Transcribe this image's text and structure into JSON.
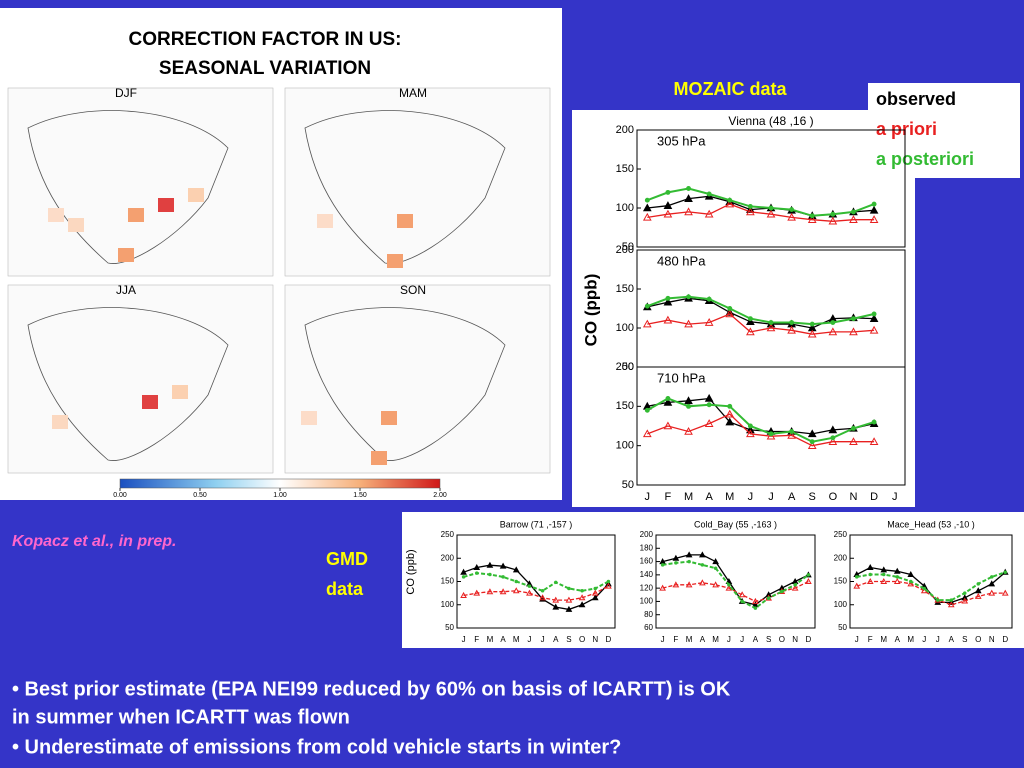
{
  "title_lines": [
    "CORRECTION FACTOR IN US:",
    "SEASONAL VARIATION"
  ],
  "maps": {
    "panels": [
      "DJF",
      "MAM",
      "JJA",
      "SON"
    ],
    "colorbar_ticks": [
      {
        "value": 0,
        "label": "0.00"
      },
      {
        "value": 0.5,
        "label": "0.50"
      },
      {
        "value": 1,
        "label": "1.00"
      },
      {
        "value": 1.5,
        "label": "1.50"
      },
      {
        "value": 2,
        "label": "2.00"
      }
    ]
  },
  "citation": "Kopacz et al., in prep.",
  "legend": [
    {
      "name": "observed",
      "color": "#000000"
    },
    {
      "name": "a priori",
      "color": "#e82020"
    },
    {
      "name": "a posteriori",
      "color": "#33bb33"
    }
  ],
  "mozaic": {
    "label": "MOZAIC data",
    "ylabel": "CO (ppb)"
  },
  "gmd": {
    "label_lines": [
      "GMD",
      "data"
    ],
    "ylabel": "CO (ppb)"
  },
  "bullets": [
    "• Best prior estimate (EPA NEI99 reduced by 60% on basis of ICARTT) is OK",
    "in summer when ICARTT was flown",
    "• Underestimate of emissions from cold vehicle starts in winter?"
  ],
  "chart_data": [
    {
      "type": "line",
      "title": "Vienna (48 ,16 )",
      "annotation": "305 hPa",
      "categories": [
        "J",
        "F",
        "M",
        "A",
        "M",
        "J",
        "J",
        "A",
        "S",
        "O",
        "N",
        "D",
        "J"
      ],
      "series": [
        {
          "values": [
            100,
            103,
            112,
            115,
            108,
            98,
            100,
            97,
            90,
            92,
            95,
            97,
            null
          ]
        },
        {
          "values": [
            88,
            92,
            95,
            92,
            105,
            95,
            92,
            88,
            85,
            83,
            85,
            85,
            null
          ]
        },
        {
          "values": [
            110,
            120,
            125,
            118,
            110,
            102,
            100,
            98,
            90,
            92,
            95,
            105,
            null
          ]
        }
      ],
      "ylim": [
        50,
        200
      ],
      "yticks": [
        50,
        100,
        150,
        200
      ]
    },
    {
      "type": "line",
      "annotation": "480 hPa",
      "categories": [
        "J",
        "F",
        "M",
        "A",
        "M",
        "J",
        "J",
        "A",
        "S",
        "O",
        "N",
        "D",
        "J"
      ],
      "series": [
        {
          "values": [
            127,
            133,
            138,
            135,
            120,
            108,
            105,
            105,
            100,
            112,
            113,
            112,
            null
          ]
        },
        {
          "values": [
            105,
            110,
            105,
            107,
            118,
            95,
            100,
            97,
            92,
            95,
            95,
            97,
            null
          ]
        },
        {
          "values": [
            128,
            138,
            140,
            137,
            125,
            112,
            107,
            107,
            105,
            107,
            112,
            118,
            null
          ]
        }
      ],
      "ylim": [
        50,
        200
      ],
      "yticks": [
        50,
        100,
        150,
        200
      ]
    },
    {
      "type": "line",
      "annotation": "710 hPa",
      "categories": [
        "J",
        "F",
        "M",
        "A",
        "M",
        "J",
        "J",
        "A",
        "S",
        "O",
        "N",
        "D",
        "J"
      ],
      "series": [
        {
          "values": [
            150,
            155,
            157,
            160,
            130,
            120,
            118,
            118,
            115,
            120,
            122,
            128,
            null
          ]
        },
        {
          "values": [
            115,
            125,
            118,
            128,
            140,
            115,
            112,
            113,
            100,
            105,
            105,
            105,
            null
          ]
        },
        {
          "values": [
            145,
            160,
            150,
            152,
            150,
            125,
            115,
            118,
            105,
            110,
            122,
            130,
            null
          ]
        }
      ],
      "ylim": [
        50,
        200
      ],
      "yticks": [
        50,
        100,
        150,
        200
      ]
    },
    {
      "type": "line",
      "title": "Barrow (71 ,-157 )",
      "categories": [
        "J",
        "F",
        "M",
        "A",
        "M",
        "J",
        "J",
        "A",
        "S",
        "O",
        "N",
        "D"
      ],
      "series": [
        {
          "values": [
            170,
            180,
            185,
            183,
            175,
            145,
            112,
            95,
            90,
            100,
            115,
            145
          ]
        },
        {
          "values": [
            120,
            125,
            128,
            128,
            130,
            125,
            115,
            110,
            110,
            115,
            125,
            140
          ]
        },
        {
          "values": [
            160,
            168,
            165,
            160,
            150,
            140,
            130,
            148,
            135,
            130,
            135,
            150
          ]
        }
      ],
      "ylim": [
        50,
        250
      ],
      "yticks": [
        50,
        100,
        150,
        200,
        250
      ]
    },
    {
      "type": "line",
      "title": "Cold_Bay (55 ,-163 )",
      "categories": [
        "J",
        "F",
        "M",
        "A",
        "M",
        "J",
        "J",
        "A",
        "S",
        "O",
        "N",
        "D"
      ],
      "series": [
        {
          "values": [
            160,
            165,
            170,
            170,
            160,
            130,
            100,
            95,
            110,
            120,
            130,
            140
          ]
        },
        {
          "values": [
            120,
            125,
            125,
            128,
            125,
            120,
            110,
            100,
            105,
            115,
            120,
            130
          ]
        },
        {
          "values": [
            155,
            158,
            160,
            155,
            150,
            125,
            100,
            90,
            105,
            115,
            125,
            140
          ]
        }
      ],
      "ylim": [
        60,
        200
      ],
      "yticks": [
        60,
        80,
        100,
        120,
        140,
        160,
        180,
        200
      ]
    },
    {
      "type": "line",
      "title": "Mace_Head (53 ,-10 )",
      "categories": [
        "J",
        "F",
        "M",
        "A",
        "M",
        "J",
        "J",
        "A",
        "S",
        "O",
        "N",
        "D"
      ],
      "series": [
        {
          "values": [
            165,
            180,
            175,
            172,
            165,
            140,
            105,
            105,
            115,
            130,
            145,
            170
          ]
        },
        {
          "values": [
            140,
            150,
            150,
            150,
            145,
            130,
            110,
            100,
            108,
            118,
            125,
            125
          ]
        },
        {
          "values": [
            160,
            165,
            165,
            160,
            150,
            135,
            110,
            110,
            125,
            145,
            160,
            170
          ]
        }
      ],
      "ylim": [
        50,
        250
      ],
      "yticks": [
        50,
        100,
        150,
        200,
        250
      ]
    }
  ]
}
